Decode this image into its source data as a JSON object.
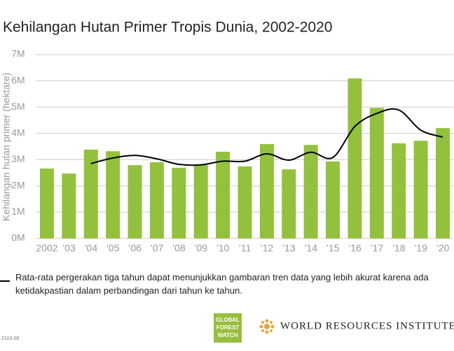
{
  "chart_data": {
    "type": "bar",
    "title": "Kehilangan Hutan Primer Tropis Dunia, 2002-2020",
    "y_label": "Kehilangan hutan primer (hektare)",
    "categories": [
      "2002",
      "’03",
      "’04",
      "’05",
      "’06",
      "’07",
      "’08",
      "’09",
      "’10",
      "’11",
      "’12",
      "’13",
      "’14",
      "’15",
      "’16",
      "’17",
      "’18",
      "’19",
      "’20"
    ],
    "series": [
      {
        "type": "bar",
        "color": "#93c13e",
        "values": [
          2.66,
          2.47,
          3.38,
          3.32,
          2.79,
          2.9,
          2.69,
          2.79,
          3.3,
          2.74,
          3.59,
          2.63,
          3.56,
          2.93,
          6.09,
          4.97,
          3.62,
          3.72,
          4.2
        ]
      },
      {
        "type": "line",
        "color": "#000000",
        "name": "Rata-rata pergerakan tiga tahun dapat menunjukkan gambaran tren data yang lebih akurat karena ada ketidakpastian dalam perbandingan dari tahun ke tahun.",
        "values": [
          null,
          null,
          2.85,
          3.06,
          3.16,
          3.03,
          2.82,
          2.8,
          2.94,
          2.94,
          3.22,
          2.98,
          3.28,
          3.08,
          4.26,
          4.76,
          4.89,
          4.12,
          3.86
        ]
      }
    ],
    "ylim": [
      0,
      7
    ],
    "yticks": [
      {
        "value": 0,
        "label": "0M"
      },
      {
        "value": 1,
        "label": "1M"
      },
      {
        "value": 2,
        "label": "2M"
      },
      {
        "value": 3,
        "label": "3M"
      },
      {
        "value": 4,
        "label": "4M"
      },
      {
        "value": 5,
        "label": "5M"
      },
      {
        "value": 6,
        "label": "6M"
      },
      {
        "value": 7,
        "label": "7M"
      }
    ],
    "grid": true
  },
  "footer": {
    "code": "2103.08",
    "gfw": [
      "GLOBAL",
      "FOREST",
      "WATCH"
    ],
    "wri": "WORLD RESOURCES INSTITUTE"
  }
}
